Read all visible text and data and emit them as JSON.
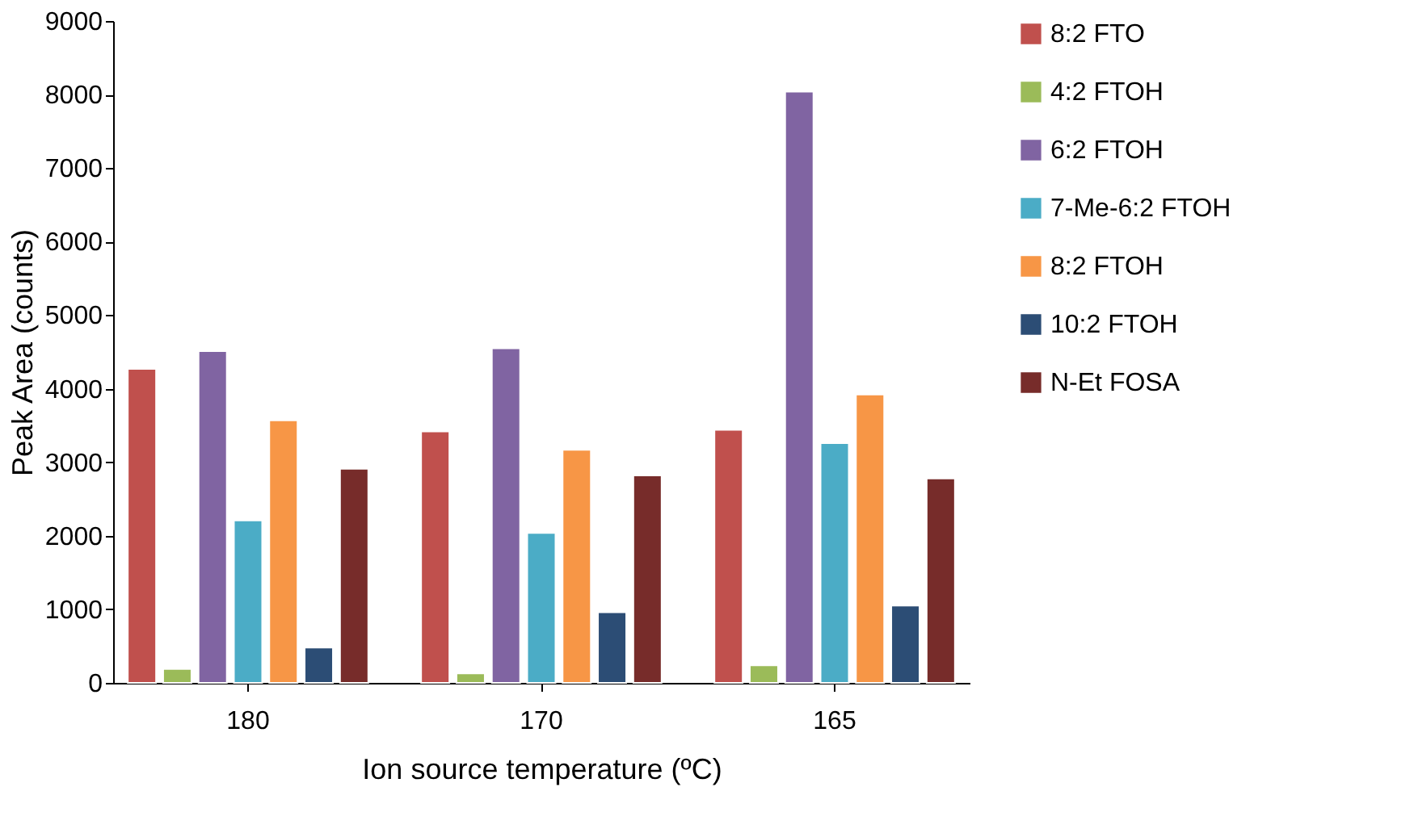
{
  "chart_data": {
    "type": "bar",
    "xlabel": "Ion source temperature (ºC)",
    "ylabel": "Peak Area (counts)",
    "categories": [
      "180",
      "170",
      "165"
    ],
    "series": [
      {
        "name": "8:2 FTO",
        "color": "#c0504d",
        "values": [
          4270,
          3420,
          3440
        ]
      },
      {
        "name": "4:2 FTOH",
        "color": "#9bbb59",
        "values": [
          190,
          130,
          240
        ]
      },
      {
        "name": "6:2 FTOH",
        "color": "#8064a2",
        "values": [
          4510,
          4550,
          8040
        ]
      },
      {
        "name": "7-Me-6:2 FTOH",
        "color": "#4bacc6",
        "values": [
          2210,
          2040,
          3260
        ]
      },
      {
        "name": "8:2 FTOH",
        "color": "#f79646",
        "values": [
          3570,
          3170,
          3920
        ]
      },
      {
        "name": "10:2 FTOH",
        "color": "#2c4d75",
        "values": [
          480,
          960,
          1050
        ]
      },
      {
        "name": "N-Et FOSA",
        "color": "#772c2a",
        "values": [
          2910,
          2820,
          2780
        ]
      }
    ],
    "ylim": [
      0,
      9000
    ],
    "yticks": [
      0,
      1000,
      2000,
      3000,
      4000,
      5000,
      6000,
      7000,
      8000,
      9000
    ],
    "grid": false,
    "legend": "right"
  }
}
